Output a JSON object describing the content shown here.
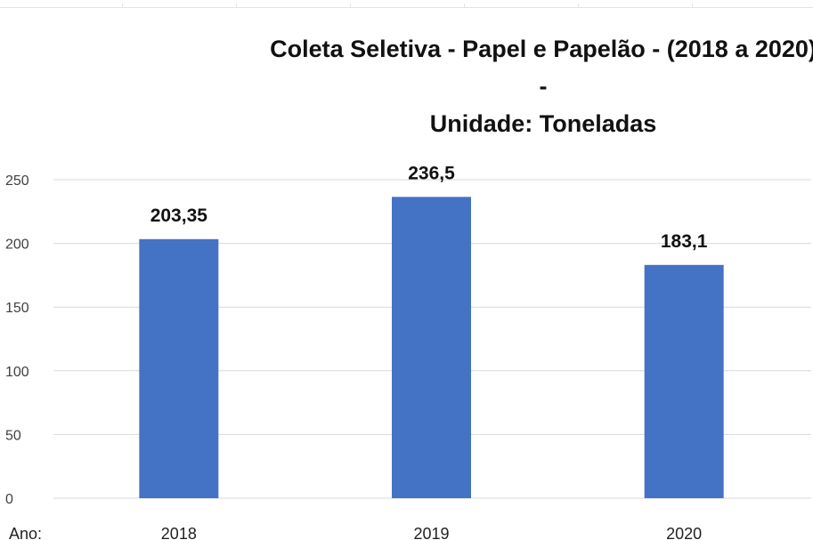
{
  "chart_data": {
    "type": "bar",
    "title": "Coleta Seletiva - Papel e Papelão - (2018 a 2020) -",
    "subtitle": "Unidade: Toneladas",
    "xlabel": "Ano:",
    "ylabel": "",
    "categories": [
      "2018",
      "2019",
      "2020"
    ],
    "values": [
      203.35,
      236.5,
      183.1
    ],
    "data_labels": [
      "203,35",
      "236,5",
      "183,1"
    ],
    "ylim": [
      0,
      250
    ],
    "yticks": [
      0,
      50,
      100,
      150,
      200,
      250
    ],
    "grid": true,
    "legend": "none",
    "bar_color": "#4472C4",
    "grid_color": "#d9d9d9"
  }
}
